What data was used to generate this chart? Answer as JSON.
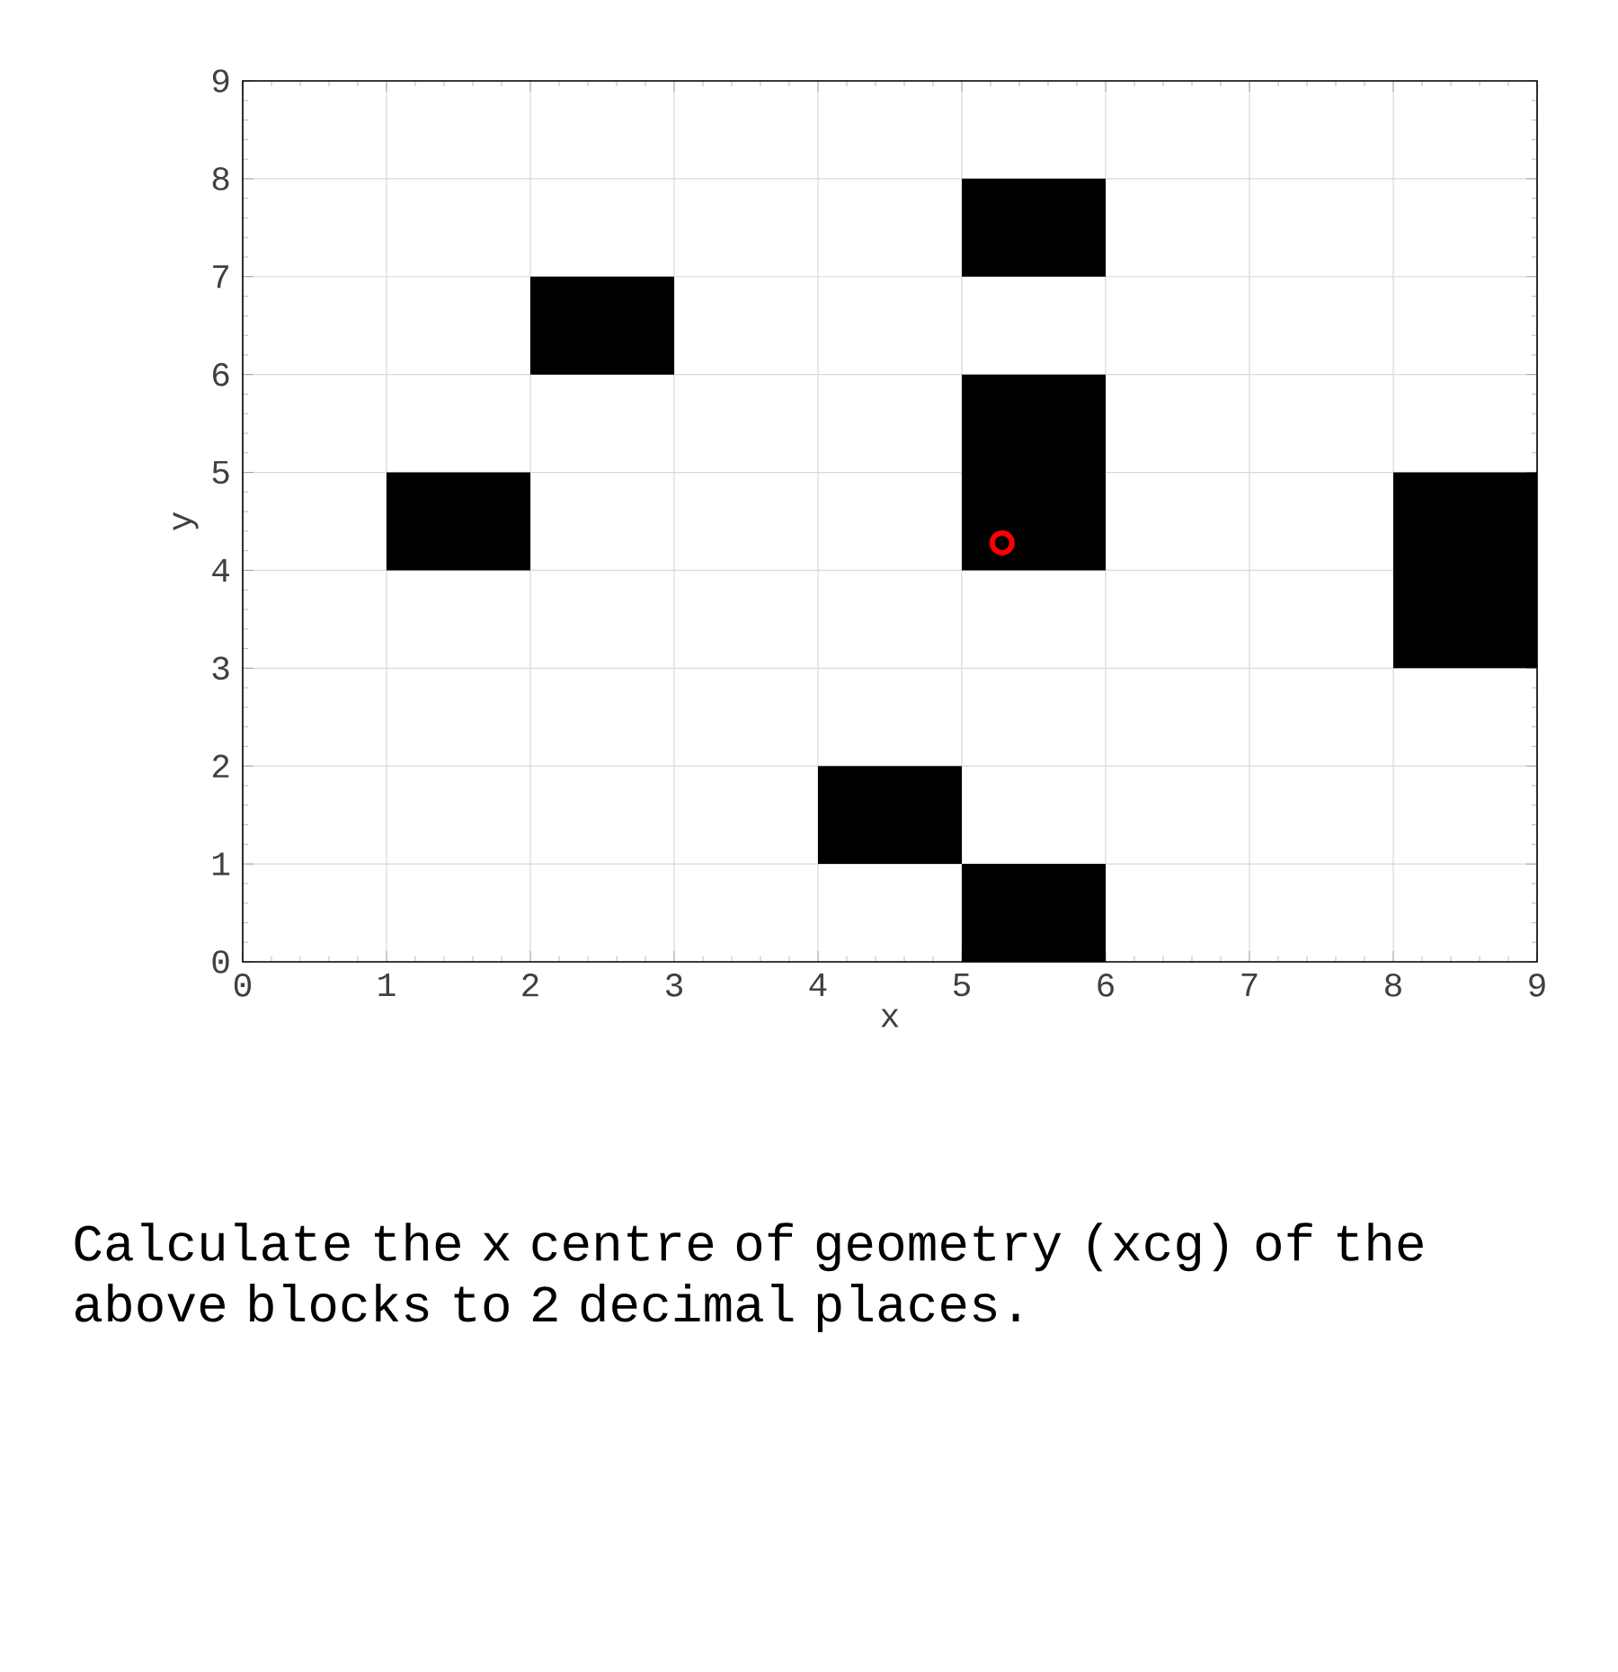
{
  "chart_data": {
    "type": "bar",
    "xlabel": "x",
    "ylabel": "y",
    "xlim": [
      0,
      9
    ],
    "ylim": [
      0,
      9
    ],
    "xticks": [
      0,
      1,
      2,
      3,
      4,
      5,
      6,
      7,
      8,
      9
    ],
    "yticks": [
      0,
      1,
      2,
      3,
      4,
      5,
      6,
      7,
      8,
      9
    ],
    "grid": true,
    "series": [
      {
        "color": "#000000",
        "x": [
          1.5,
          2.5,
          4.5,
          5.5,
          8.5
        ],
        "base": [
          4,
          6,
          1,
          0,
          3
        ],
        "values": [
          1,
          1,
          1,
          1,
          2
        ]
      },
      {
        "color": "#000000",
        "x": [
          5.5
        ],
        "base": [
          4
        ],
        "values": [
          2
        ]
      },
      {
        "color": "#000000",
        "x": [
          5.5
        ],
        "base": [
          7
        ],
        "values": [
          1
        ]
      },
      {
        "type": "scatter",
        "color": "#ff0000",
        "marker": "circle",
        "x": [
          5.28
        ],
        "values": [
          4.28
        ]
      }
    ],
    "annotations": [
      "Calculate the x centre of geometry (xcg) of the above blocks to 2 decimal places."
    ]
  }
}
